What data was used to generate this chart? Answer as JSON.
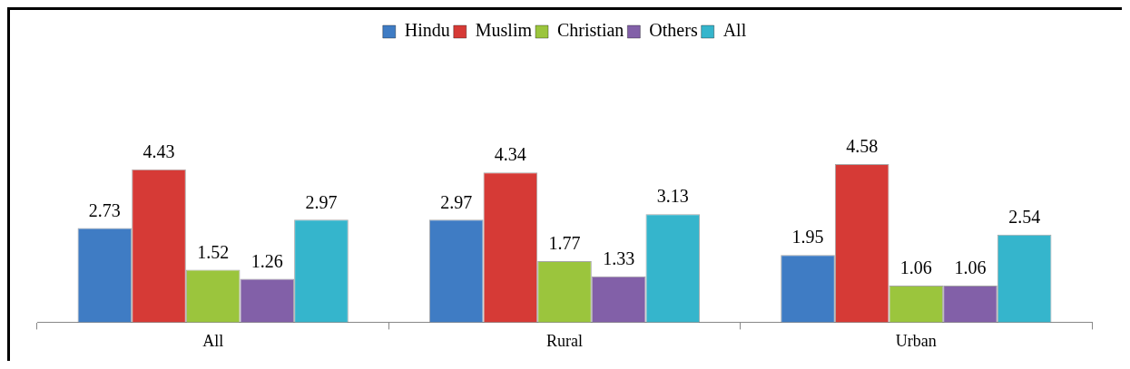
{
  "chart_data": {
    "type": "bar",
    "categories": [
      "All",
      "Rural",
      "Urban"
    ],
    "series": [
      {
        "name": "Hindu",
        "color": "#3f7cc4",
        "values": [
          2.73,
          2.97,
          1.95
        ]
      },
      {
        "name": "Muslim",
        "color": "#d63a36",
        "values": [
          4.43,
          4.34,
          4.58
        ]
      },
      {
        "name": "Christian",
        "color": "#9bc53d",
        "values": [
          1.52,
          1.77,
          1.06
        ]
      },
      {
        "name": "Others",
        "color": "#8260a8",
        "values": [
          1.26,
          1.33,
          1.06
        ]
      },
      {
        "name": "All",
        "color": "#35b5cc",
        "values": [
          2.97,
          3.13,
          2.54
        ]
      }
    ],
    "data_labels": true,
    "legend": "top",
    "grid": false
  }
}
